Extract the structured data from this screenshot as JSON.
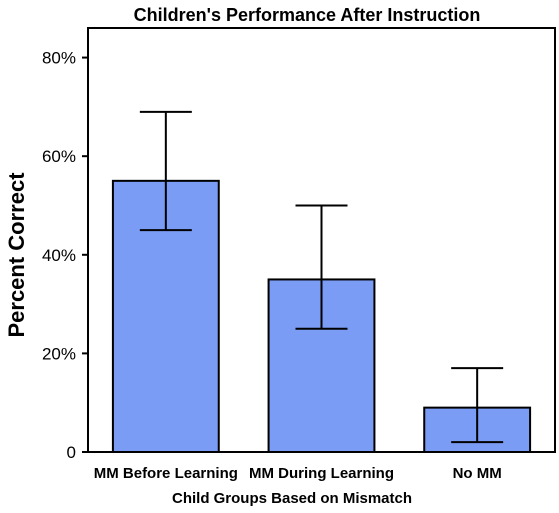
{
  "chart_data": {
    "type": "bar",
    "title": "Children's Performance After Instruction",
    "xlabel": "Child Groups Based on Mismatch",
    "ylabel": "Percent Correct",
    "categories": [
      "MM Before Learning",
      "MM During Learning",
      "No MM"
    ],
    "values": [
      55,
      35,
      9
    ],
    "error_low": [
      45,
      25,
      2
    ],
    "error_high": [
      69,
      50,
      17
    ],
    "ylim": [
      0,
      86
    ],
    "yticks": [
      0,
      20,
      40,
      60,
      80
    ],
    "ytick_labels": [
      "0",
      "20%",
      "40%",
      "60%",
      "80%"
    ],
    "grid": false,
    "legend": "none",
    "bar_color": "#7b9cf5",
    "edge_color": "#000000"
  }
}
